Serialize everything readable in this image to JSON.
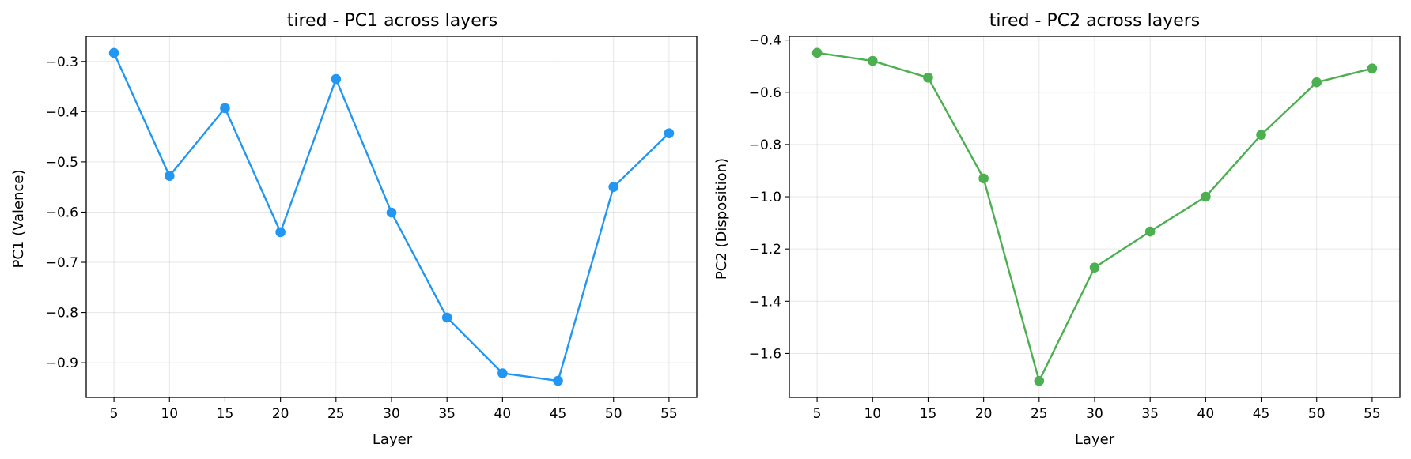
{
  "chart_data": [
    {
      "type": "line",
      "title": "tired - PC1 across layers",
      "xlabel": "Layer",
      "ylabel": "PC1 (Valence)",
      "x": [
        5,
        10,
        15,
        20,
        25,
        30,
        35,
        40,
        45,
        50,
        55
      ],
      "series": [
        {
          "values": [
            -0.283,
            -0.528,
            -0.393,
            -0.64,
            -0.335,
            -0.601,
            -0.81,
            -0.921,
            -0.936,
            -0.55,
            -0.443
          ]
        }
      ],
      "xticks": [
        "5",
        "10",
        "15",
        "20",
        "25",
        "30",
        "35",
        "40",
        "45",
        "50",
        "55"
      ],
      "yticks": [
        -0.3,
        -0.4,
        -0.5,
        -0.6,
        -0.7,
        -0.8,
        -0.9
      ],
      "ytick_labels": [
        "−0.3",
        "−0.4",
        "−0.5",
        "−0.6",
        "−0.7",
        "−0.8",
        "−0.9"
      ],
      "xlim": [
        2.5,
        57.5
      ],
      "ylim": [
        -0.969,
        -0.25
      ],
      "grid": true,
      "color": "#2196F3"
    },
    {
      "type": "line",
      "title": "tired - PC2 across layers",
      "xlabel": "Layer",
      "ylabel": "PC2 (Disposition)",
      "x": [
        5,
        10,
        15,
        20,
        25,
        30,
        35,
        40,
        45,
        50,
        55
      ],
      "series": [
        {
          "values": [
            -0.449,
            -0.48,
            -0.544,
            -0.93,
            -1.705,
            -1.271,
            -1.133,
            -1.0,
            -0.763,
            -0.562,
            -0.509
          ]
        }
      ],
      "xticks": [
        "5",
        "10",
        "15",
        "20",
        "25",
        "30",
        "35",
        "40",
        "45",
        "50",
        "55"
      ],
      "yticks": [
        -0.4,
        -0.6,
        -0.8,
        -1.0,
        -1.2,
        -1.4,
        -1.6
      ],
      "ytick_labels": [
        "−0.4",
        "−0.6",
        "−0.8",
        "−1.0",
        "−1.2",
        "−1.4",
        "−1.6"
      ],
      "xlim": [
        2.5,
        57.5
      ],
      "ylim": [
        -1.768,
        -0.386
      ],
      "grid": true,
      "color": "#4CAF50"
    }
  ]
}
